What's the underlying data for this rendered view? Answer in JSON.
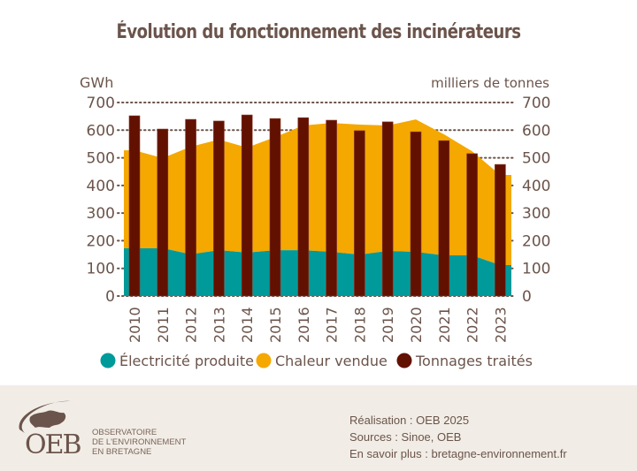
{
  "title": "Évolution du fonctionnement des incinérateurs",
  "chart_data": {
    "type": "bar",
    "title": "Évolution du fonctionnement des incinérateurs",
    "categories": [
      "2010",
      "2011",
      "2012",
      "2013",
      "2014",
      "2015",
      "2016",
      "2017",
      "2018",
      "2019",
      "2020",
      "2021",
      "2022",
      "2023"
    ],
    "y_left": {
      "label": "GWh",
      "ticks": [
        0,
        100,
        200,
        300,
        400,
        500,
        600,
        700
      ],
      "lim": [
        0,
        700
      ]
    },
    "y_right": {
      "label": "milliers de tonnes",
      "ticks": [
        0,
        100,
        200,
        300,
        400,
        500,
        600,
        700
      ],
      "lim": [
        0,
        700
      ]
    },
    "grid": "dotted horizontal",
    "series": [
      {
        "name": "Électricité produite",
        "kind": "stacked-area",
        "axis": "left",
        "color": "#009a9a",
        "values": [
          173,
          173,
          151,
          166,
          157,
          166,
          166,
          160,
          150,
          163,
          160,
          147,
          147,
          112
        ]
      },
      {
        "name": "Chaleur vendue",
        "kind": "stacked-area",
        "axis": "left",
        "color": "#f5a800",
        "values": [
          354,
          326,
          389,
          400,
          380,
          409,
          451,
          466,
          470,
          454,
          479,
          438,
          377,
          326
        ]
      },
      {
        "name": "Tonnages traités",
        "kind": "bar",
        "axis": "right",
        "color": "#621100",
        "values": [
          652,
          604,
          639,
          633,
          655,
          642,
          645,
          636,
          598,
          630,
          594,
          562,
          515,
          476
        ]
      }
    ],
    "legend": {
      "position": "bottom",
      "entries": [
        "Électricité produite",
        "Chaleur vendue",
        "Tonnages traités"
      ]
    }
  },
  "footer": {
    "logo_text": "OEB",
    "logo_subtitle": [
      "OBSERVATOIRE",
      "DE L'ENVIRONNEMENT",
      "EN BRETAGNE"
    ],
    "credits": [
      "Réalisation : OEB 2025",
      "Sources : Sinoe, OEB",
      "En savoir plus : bretagne-environnement.fr"
    ]
  }
}
